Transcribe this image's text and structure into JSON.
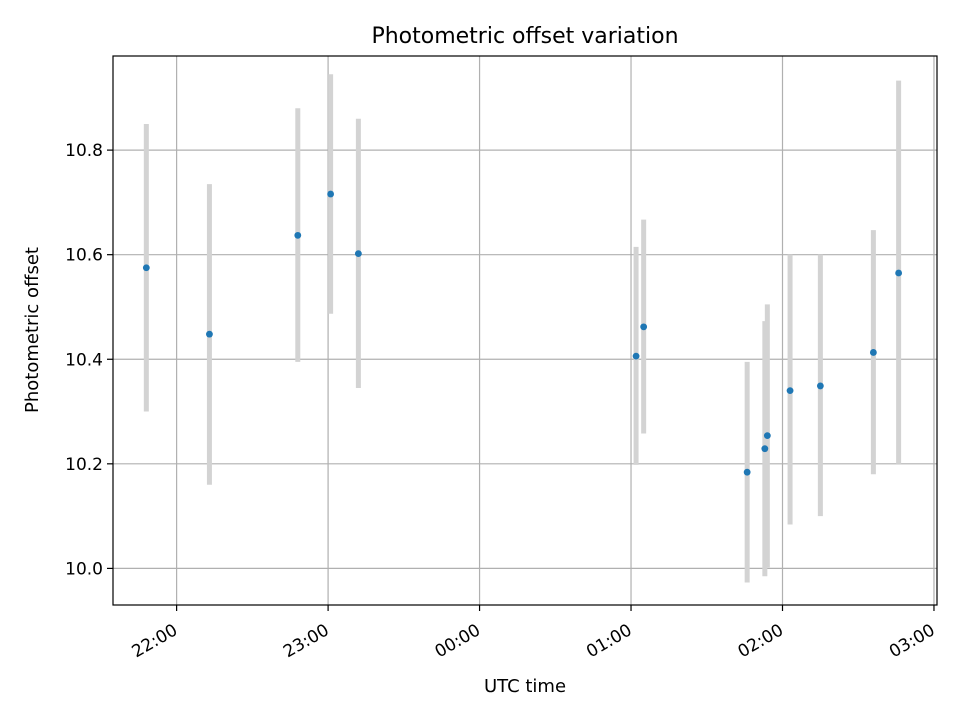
{
  "chart_data": {
    "type": "scatter",
    "title": "Photometric offset variation",
    "xlabel": "UTC time",
    "ylabel": "Photometric offset",
    "x_ticks": [
      "22:00",
      "23:00",
      "00:00",
      "01:00",
      "02:00",
      "03:00"
    ],
    "y_ticks": [
      "10.0",
      "10.2",
      "10.4",
      "10.6",
      "10.8"
    ],
    "x_tick_values_hours": [
      22,
      23,
      24,
      25,
      26,
      27
    ],
    "y_tick_values": [
      10.0,
      10.2,
      10.4,
      10.6,
      10.8
    ],
    "xlim_hours": [
      21.58,
      27.02
    ],
    "ylim": [
      9.93,
      10.98
    ],
    "grid": true,
    "colors": {
      "point": "#1f77b4",
      "errorbar": "#d3d3d3",
      "grid": "#b0b0b0"
    },
    "points": [
      {
        "time": "21:48",
        "y": 10.575,
        "err_low": 10.3,
        "err_high": 10.85
      },
      {
        "time": "22:13",
        "y": 10.448,
        "err_low": 10.16,
        "err_high": 10.735
      },
      {
        "time": "22:48",
        "y": 10.637,
        "err_low": 10.395,
        "err_high": 10.88
      },
      {
        "time": "23:01",
        "y": 10.716,
        "err_low": 10.487,
        "err_high": 10.945
      },
      {
        "time": "23:12",
        "y": 10.602,
        "err_low": 10.345,
        "err_high": 10.86
      },
      {
        "time": "01:02",
        "y": 10.406,
        "err_low": 10.198,
        "err_high": 10.615
      },
      {
        "time": "01:05",
        "y": 10.462,
        "err_low": 10.258,
        "err_high": 10.667
      },
      {
        "time": "01:46",
        "y": 10.184,
        "err_low": 9.973,
        "err_high": 10.395
      },
      {
        "time": "01:53",
        "y": 10.229,
        "err_low": 9.985,
        "err_high": 10.473
      },
      {
        "time": "01:54",
        "y": 10.254,
        "err_low": 10.002,
        "err_high": 10.505
      },
      {
        "time": "02:03",
        "y": 10.34,
        "err_low": 10.084,
        "err_high": 10.6
      },
      {
        "time": "02:15",
        "y": 10.349,
        "err_low": 10.1,
        "err_high": 10.6
      },
      {
        "time": "02:36",
        "y": 10.413,
        "err_low": 10.18,
        "err_high": 10.647
      },
      {
        "time": "02:46",
        "y": 10.565,
        "err_low": 10.2,
        "err_high": 10.933
      }
    ]
  }
}
